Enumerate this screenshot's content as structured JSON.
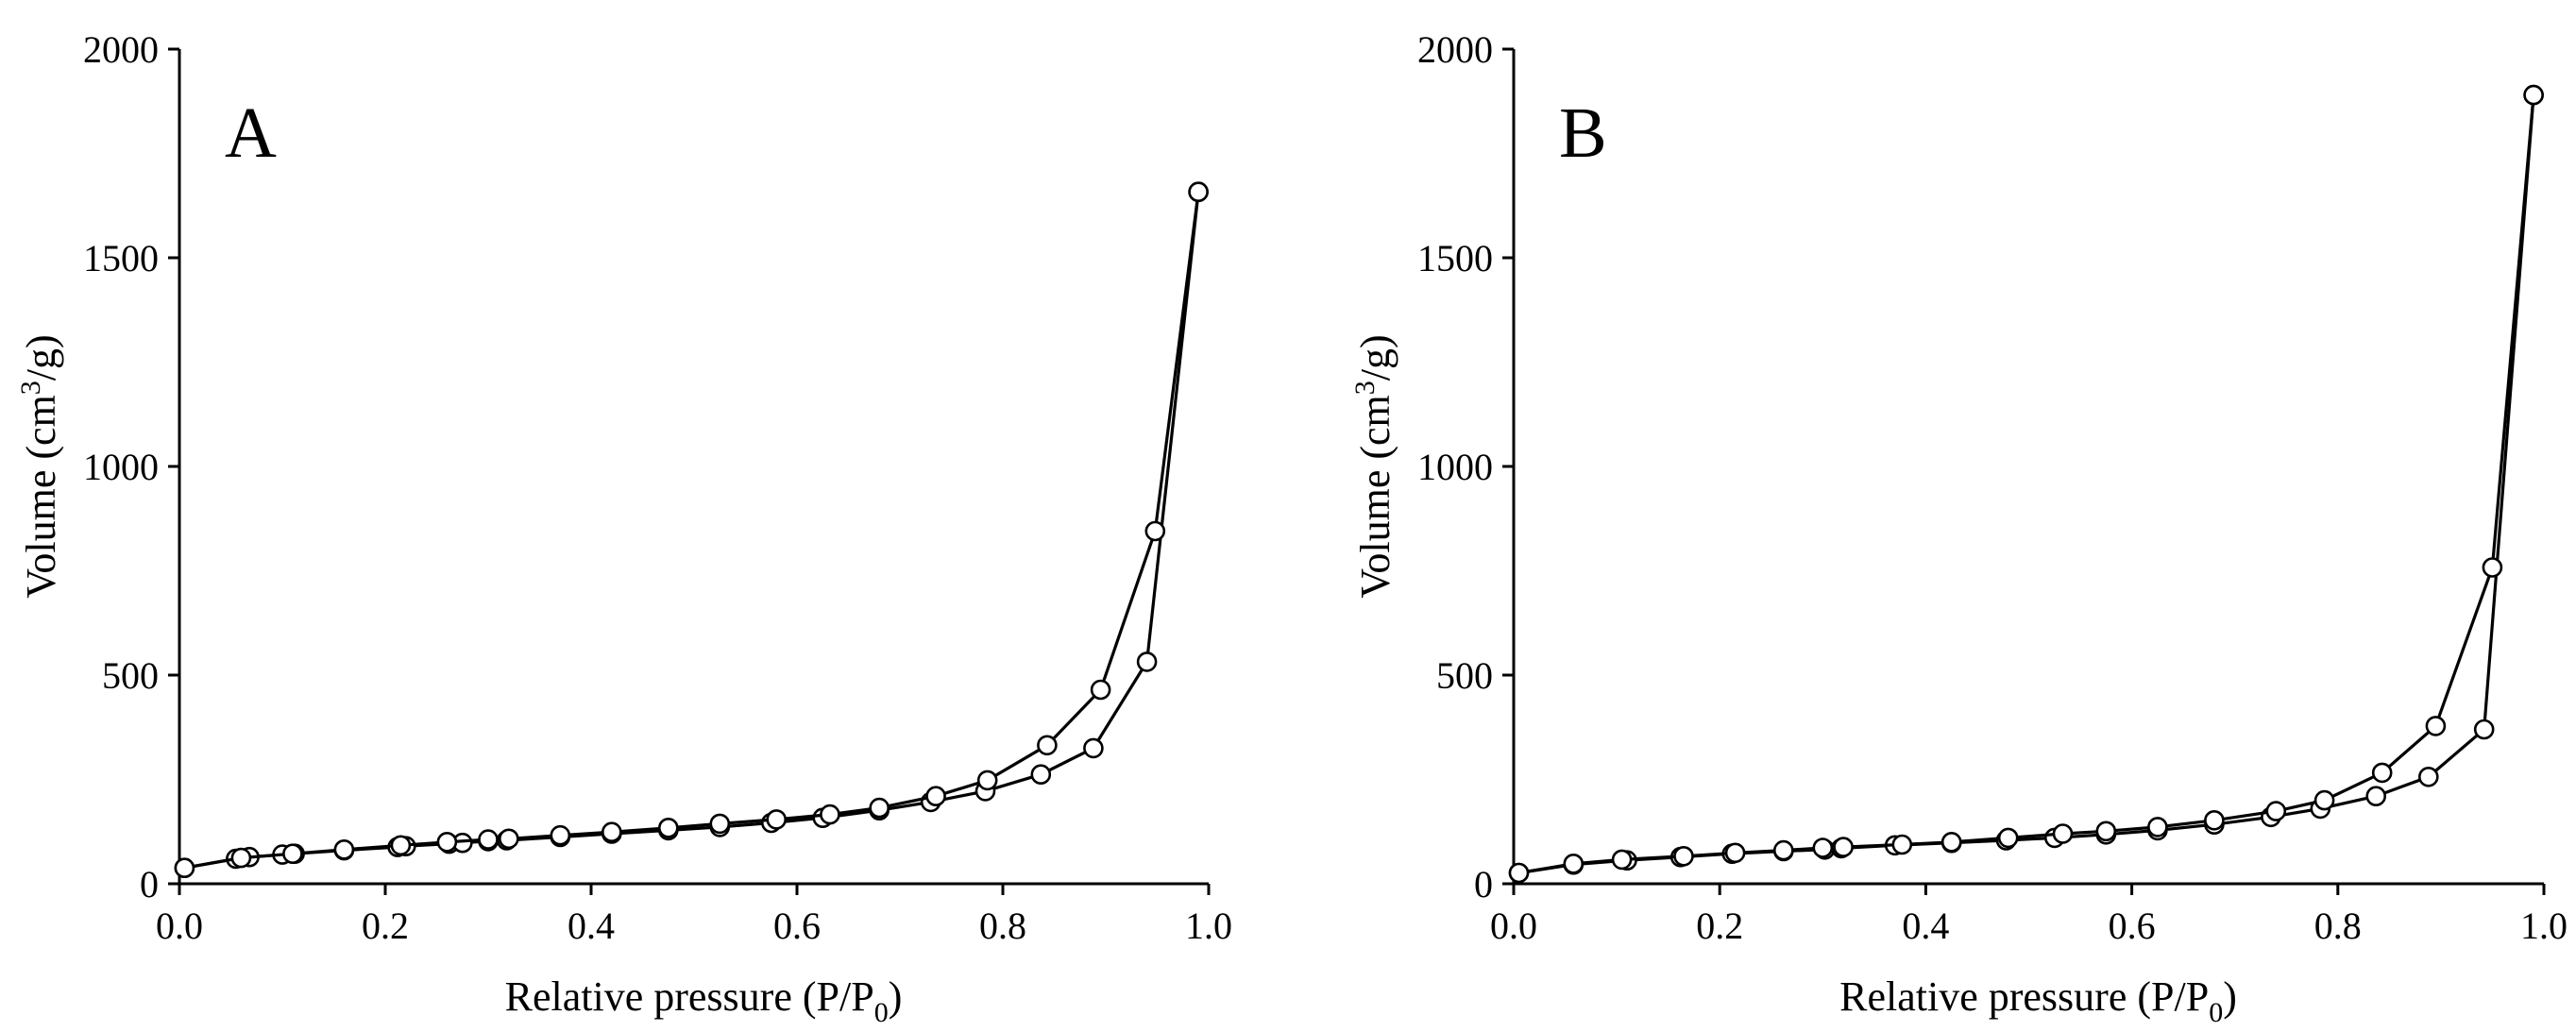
{
  "chart_data": [
    {
      "type": "line",
      "panel_label": "A",
      "xlabel": "Relative pressure (P/P0)",
      "xlabel_main": "Relative pressure (P/P",
      "xlabel_sub": "0",
      "xlabel_close": ")",
      "ylabel": "Volume (cm3/g)",
      "ylabel_main": "Volume (cm",
      "ylabel_sup": "3",
      "ylabel_close": "/g)",
      "xlim": [
        0.0,
        1.0
      ],
      "ylim": [
        0,
        2000
      ],
      "x_ticks": [
        0.0,
        0.2,
        0.4,
        0.6,
        0.8,
        1.0
      ],
      "x_tick_labels": [
        "0.0",
        "0.2",
        "0.4",
        "0.6",
        "0.8",
        "1.0"
      ],
      "y_ticks": [
        0,
        500,
        1000,
        1500,
        2000
      ],
      "y_tick_labels": [
        "0",
        "500",
        "1000",
        "1500",
        "2000"
      ],
      "grid": false,
      "series": [
        {
          "x": [
            0.005,
            0.055,
            0.068,
            0.1,
            0.112,
            0.16,
            0.212,
            0.22,
            0.262,
            0.275,
            0.3,
            0.318,
            0.37,
            0.42,
            0.475,
            0.525,
            0.575,
            0.625,
            0.68,
            0.73,
            0.783,
            0.837,
            0.888,
            0.94,
            0.99
          ],
          "y": [
            38,
            60,
            64,
            70,
            72,
            80,
            88,
            90,
            96,
            98,
            102,
            104,
            112,
            120,
            128,
            136,
            146,
            158,
            176,
            196,
            222,
            262,
            325,
            532,
            1658
          ]
        },
        {
          "x": [
            0.99,
            0.948,
            0.895,
            0.843,
            0.785,
            0.735,
            0.68,
            0.632,
            0.58,
            0.525,
            0.475,
            0.42,
            0.37,
            0.32,
            0.3,
            0.26,
            0.215,
            0.16,
            0.11,
            0.06,
            0.005
          ],
          "y": [
            1658,
            845,
            465,
            332,
            248,
            210,
            182,
            166,
            154,
            144,
            134,
            124,
            116,
            108,
            106,
            100,
            92,
            82,
            72,
            62,
            38
          ]
        }
      ]
    },
    {
      "type": "line",
      "panel_label": "B",
      "xlabel": "Relative pressure (P/P0)",
      "xlabel_main": "Relative pressure (P/P",
      "xlabel_sub": "0",
      "xlabel_close": ")",
      "ylabel": "Volume (cm3/g)",
      "ylabel_main": "Volume (cm",
      "ylabel_sup": "3",
      "ylabel_close": "/g)",
      "xlim": [
        0.0,
        1.0
      ],
      "ylim": [
        0,
        2000
      ],
      "x_ticks": [
        0.0,
        0.2,
        0.4,
        0.6,
        0.8,
        1.0
      ],
      "x_tick_labels": [
        "0.0",
        "0.2",
        "0.4",
        "0.6",
        "0.8",
        "1.0"
      ],
      "y_ticks": [
        0,
        500,
        1000,
        1500,
        2000
      ],
      "y_tick_labels": [
        "0",
        "500",
        "1000",
        "1500",
        "2000"
      ],
      "grid": false,
      "series": [
        {
          "x": [
            0.005,
            0.058,
            0.11,
            0.162,
            0.212,
            0.262,
            0.302,
            0.318,
            0.37,
            0.425,
            0.478,
            0.525,
            0.575,
            0.625,
            0.68,
            0.735,
            0.783,
            0.837,
            0.888,
            0.942,
            0.99
          ],
          "y": [
            26,
            46,
            56,
            64,
            72,
            78,
            82,
            85,
            92,
            98,
            104,
            110,
            118,
            128,
            142,
            160,
            180,
            210,
            256,
            370,
            1890
          ]
        },
        {
          "x": [
            0.99,
            0.95,
            0.895,
            0.843,
            0.787,
            0.74,
            0.68,
            0.625,
            0.575,
            0.533,
            0.48,
            0.425,
            0.377,
            0.32,
            0.3,
            0.262,
            0.215,
            0.165,
            0.105,
            0.058,
            0.005
          ],
          "y": [
            1890,
            758,
            378,
            266,
            200,
            174,
            152,
            136,
            126,
            120,
            110,
            100,
            94,
            88,
            86,
            80,
            74,
            66,
            58,
            48,
            26
          ]
        }
      ]
    }
  ]
}
